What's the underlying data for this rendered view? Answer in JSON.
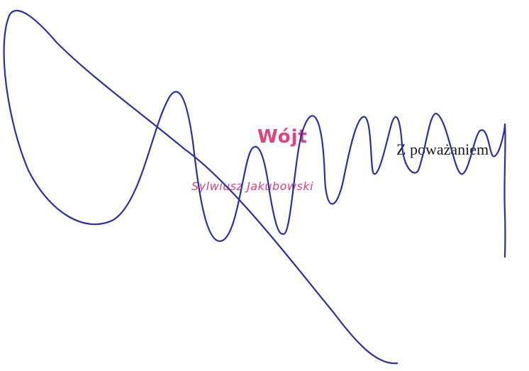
{
  "letter": {
    "closing": "Z poważaniem"
  },
  "stamp": {
    "title": "Wójt",
    "name": "Sylwiusz Jakubowski",
    "color": "#e83e7a"
  },
  "signature": {
    "ink_color": "#2a2fa8"
  }
}
